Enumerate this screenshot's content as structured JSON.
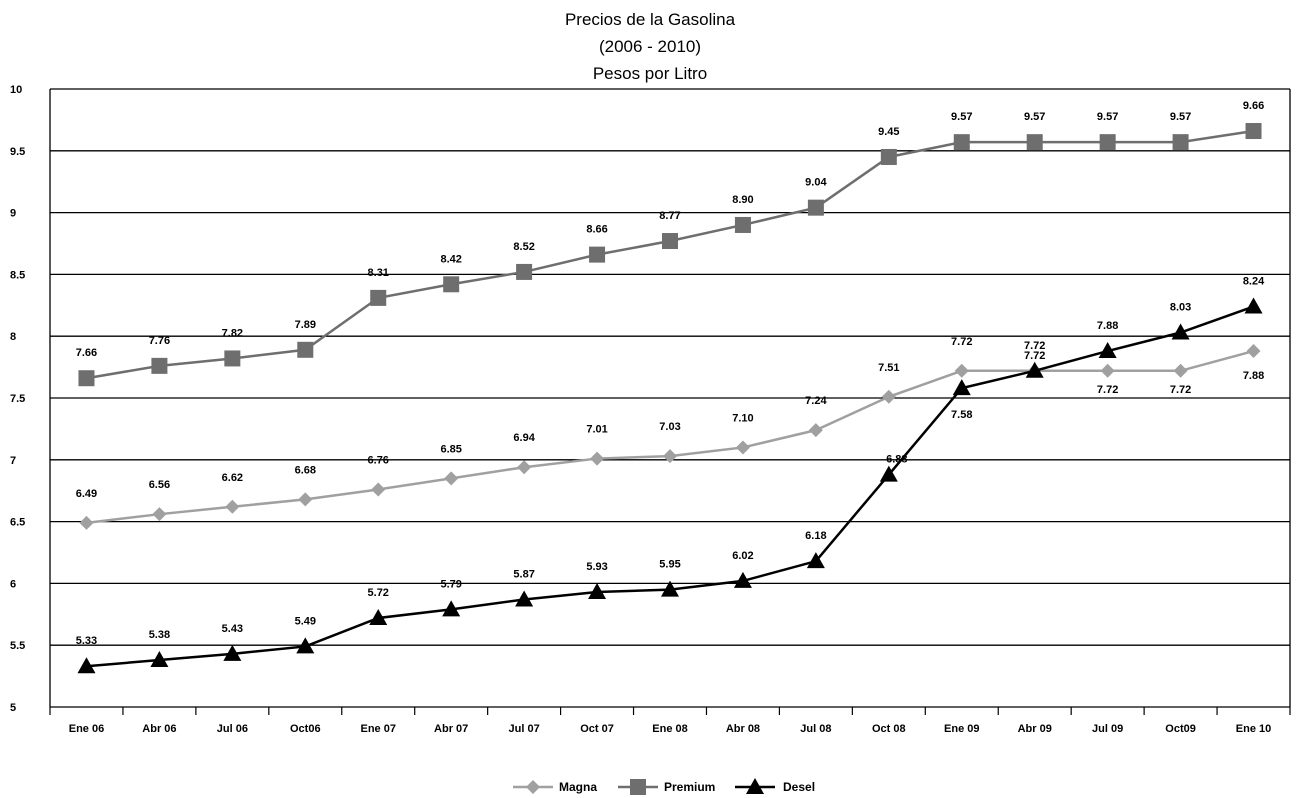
{
  "chart_data": {
    "type": "line",
    "title": [
      "Precios de la Gasolina",
      "(2006 - 2010)",
      "Pesos por Litro"
    ],
    "categories": [
      "Ene 06",
      "Abr 06",
      "Jul 06",
      "Oct06",
      "Ene 07",
      "Abr 07",
      "Jul 07",
      "Oct 07",
      "Ene 08",
      "Abr 08",
      "Jul 08",
      "Oct 08",
      "Ene 09",
      "Abr 09",
      "Jul 09",
      "Oct09",
      "Ene 10"
    ],
    "ylim": [
      5,
      10
    ],
    "yticks": [
      5,
      5.5,
      6,
      6.5,
      7,
      7.5,
      8,
      8.5,
      9,
      9.5,
      10
    ],
    "ytick_labels": [
      "5",
      "5.5",
      "6",
      "6.5",
      "7",
      "7.5",
      "8",
      "8.5",
      "9",
      "9.5",
      "10"
    ],
    "grid": true,
    "legend_position": "bottom",
    "series": [
      {
        "name": "Magna",
        "color": "#a0a0a0",
        "marker": "diamond",
        "values": [
          6.49,
          6.56,
          6.62,
          6.68,
          6.76,
          6.85,
          6.94,
          7.01,
          7.03,
          7.1,
          7.24,
          7.51,
          7.72,
          7.72,
          7.72,
          7.72,
          7.88
        ],
        "labels": [
          "6.49",
          "6.56",
          "6.62",
          "6.68",
          "6.76",
          "6.85",
          "6.94",
          "7.01",
          "7.03",
          "7.10",
          "7.24",
          "7.51",
          "7.72",
          "7.72",
          "7.72",
          "7.72",
          "7.88"
        ]
      },
      {
        "name": "Premium",
        "color": "#6e6e6e",
        "marker": "square",
        "values": [
          7.66,
          7.76,
          7.82,
          7.89,
          8.31,
          8.42,
          8.52,
          8.66,
          8.77,
          8.9,
          9.04,
          9.45,
          9.57,
          9.57,
          9.57,
          9.57,
          9.66
        ],
        "labels": [
          "7.66",
          "7.76",
          "7.82",
          "7.89",
          "8.31",
          "8.42",
          "8.52",
          "8.66",
          "8.77",
          "8.90",
          "9.04",
          "9.45",
          "9.57",
          "9.57",
          "9.57",
          "9.57",
          "9.66"
        ]
      },
      {
        "name": "Desel",
        "color": "#000000",
        "marker": "triangle",
        "values": [
          5.33,
          5.38,
          5.43,
          5.49,
          5.72,
          5.79,
          5.87,
          5.93,
          5.95,
          6.02,
          6.18,
          6.88,
          7.58,
          7.72,
          7.88,
          8.03,
          8.24
        ],
        "labels": [
          "5.33",
          "5.38",
          "5.43",
          "5.49",
          "5.72",
          "5.79",
          "5.87",
          "5.93",
          "5.95",
          "6.02",
          "6.18",
          "6.88",
          "7.58",
          "7.72",
          "7.88",
          "8.03",
          "8.24"
        ]
      }
    ]
  }
}
